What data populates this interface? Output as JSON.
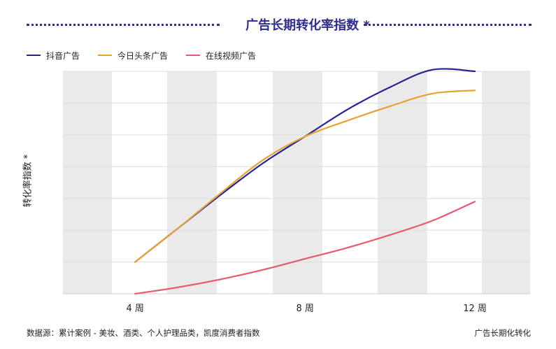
{
  "chart_data": {
    "type": "line",
    "title": "广告长期转化率指数 *",
    "ylabel": "转化率指数 *",
    "xlabel": "",
    "x": [
      4,
      5,
      6,
      7,
      8,
      9,
      10,
      11,
      12
    ],
    "x_tick_labels": [
      "4 周",
      "8 周",
      "12 周"
    ],
    "x_ticks": [
      4,
      8,
      12
    ],
    "xlim": [
      2.3,
      13.3
    ],
    "ylim": [
      0,
      7
    ],
    "grid": true,
    "legend_position": "top-left",
    "series": [
      {
        "name": "抖音广告",
        "color": "#23239a",
        "values": [
          1.0,
          2.05,
          3.1,
          4.1,
          4.95,
          5.8,
          6.5,
          7.05,
          7.0
        ]
      },
      {
        "name": "今日头条广告",
        "color": "#e8a133",
        "values": [
          1.0,
          2.05,
          3.15,
          4.2,
          4.95,
          5.45,
          5.9,
          6.3,
          6.4
        ]
      },
      {
        "name": "在线视频广告",
        "color": "#e8596e",
        "values": [
          0.0,
          0.2,
          0.45,
          0.75,
          1.1,
          1.45,
          1.85,
          2.3,
          2.9
        ]
      }
    ]
  },
  "footer": {
    "source": "数据源：累计案例 - 美妆、酒类、个人护理品类，凯度消费者指数",
    "right": "广告长期化转化"
  }
}
